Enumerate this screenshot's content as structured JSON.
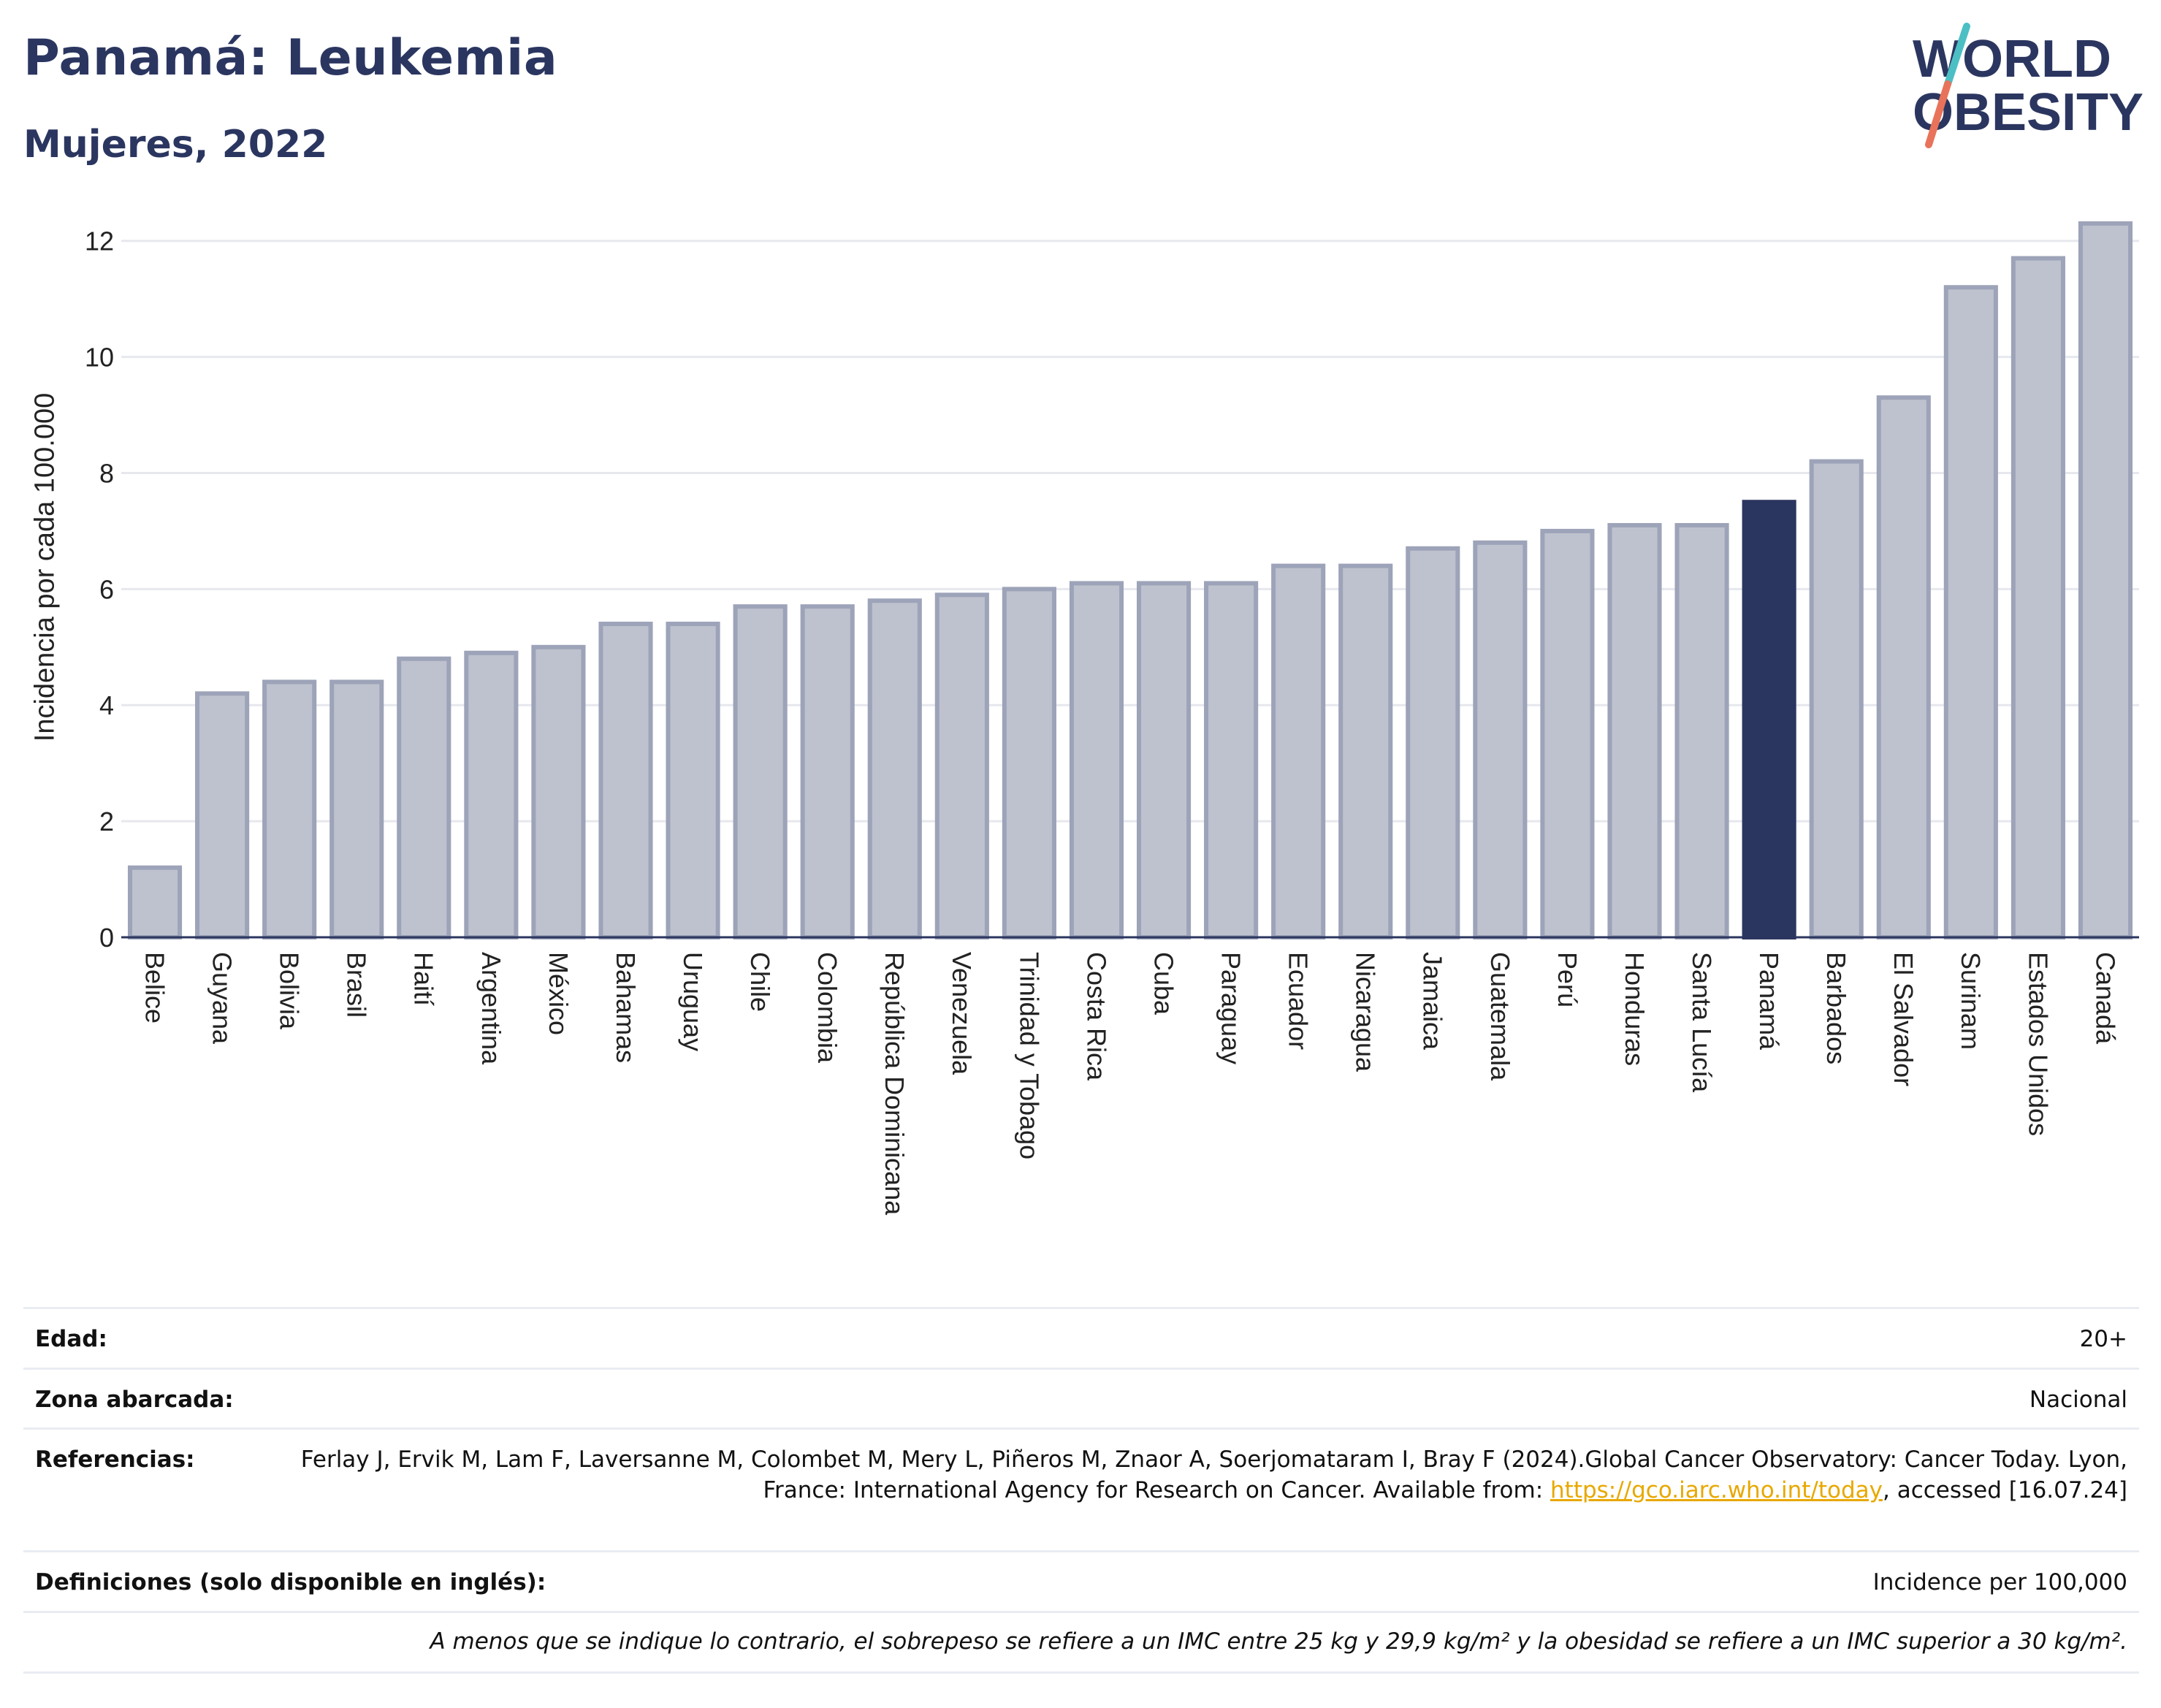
{
  "header": {
    "title": "Panamá: Leukemia",
    "subtitle": "Mujeres, 2022",
    "logo_line1": "WORLD",
    "logo_line2": "OBESITY"
  },
  "colors": {
    "title": "#2b3660",
    "bar_fill": "#bec2ce",
    "bar_stroke": "#9da3b8",
    "highlight": "#2b3660",
    "logo_slash_top": "#4bbfc4",
    "logo_slash_bottom": "#e8735a",
    "link": "#e8a800"
  },
  "chart_data": {
    "type": "bar",
    "ylabel": "Incidencia por cada 100.000",
    "ylim": [
      0,
      12.5
    ],
    "yticks": [
      0,
      2,
      4,
      6,
      8,
      10,
      12
    ],
    "grid": true,
    "highlight": "Panamá",
    "categories": [
      "Belice",
      "Guyana",
      "Bolivia",
      "Brasil",
      "Haití",
      "Argentina",
      "México",
      "Bahamas",
      "Uruguay",
      "Chile",
      "Colombia",
      "República Dominicana",
      "Venezuela",
      "Trinidad y Tobago",
      "Costa Rica",
      "Cuba",
      "Paraguay",
      "Ecuador",
      "Nicaragua",
      "Jamaica",
      "Guatemala",
      "Perú",
      "Honduras",
      "Santa Lucía",
      "Panamá",
      "Barbados",
      "El Salvador",
      "Surinam",
      "Estados Unidos",
      "Canadá"
    ],
    "values": [
      1.2,
      4.2,
      4.4,
      4.4,
      4.8,
      4.9,
      5.0,
      5.4,
      5.4,
      5.7,
      5.7,
      5.8,
      5.9,
      6.0,
      6.1,
      6.1,
      6.1,
      6.4,
      6.4,
      6.7,
      6.8,
      7.0,
      7.1,
      7.1,
      7.5,
      8.2,
      9.3,
      11.2,
      11.7,
      12.3
    ]
  },
  "info": {
    "age_label": "Edad:",
    "age_value": "20+",
    "zone_label": "Zona abarcada:",
    "zone_value": "Nacional",
    "ref_label": "Referencias:",
    "ref_text_1": "Ferlay J, Ervik M, Lam F, Laversanne M, Colombet M, Mery L, Piñeros M, Znaor A, Soerjomataram I, Bray F (2024).Global Cancer Observatory: Cancer Today. Lyon, France: International Agency for Research on Cancer. Available from: ",
    "ref_link": "https://gco.iarc.who.int/today",
    "ref_text_2": ", accessed [16.07.24]",
    "def_label": "Definiciones (solo disponible en inglés):",
    "def_value": "Incidence per 100,000",
    "note": "A menos que se indique lo contrario, el sobrepeso se refiere a un IMC entre 25 kg y 29,9 kg/m² y la obesidad se refiere a un IMC superior a 30 kg/m²."
  }
}
